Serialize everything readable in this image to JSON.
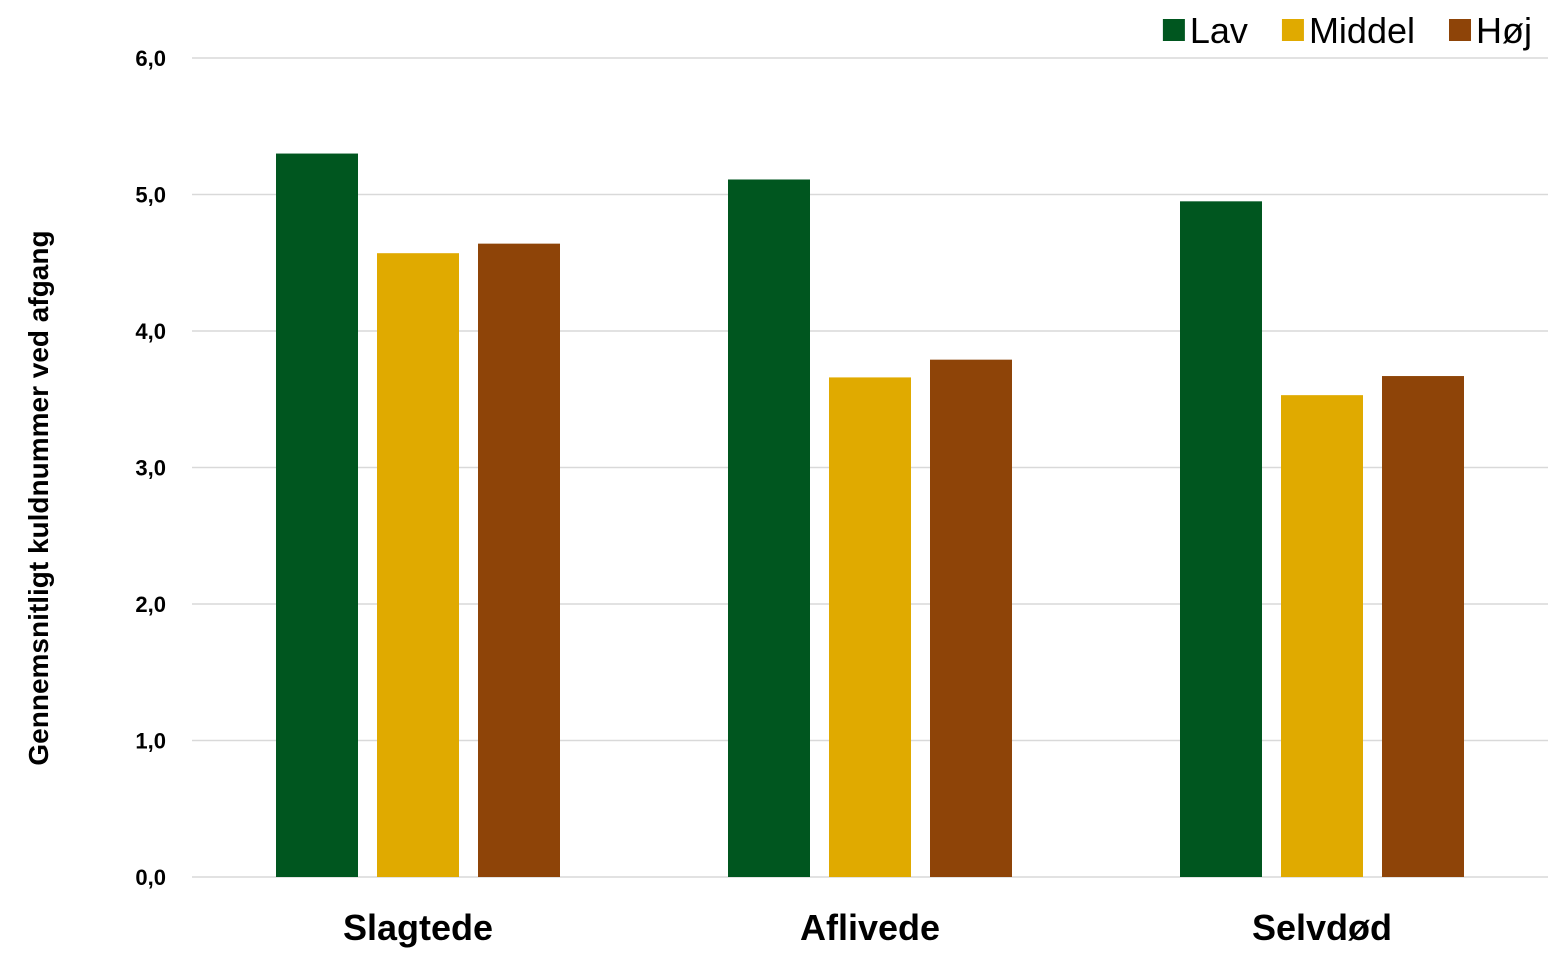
{
  "chart_data": {
    "type": "bar",
    "title": "",
    "xlabel": "",
    "ylabel": "Gennemsnitligt kuldnummer ved afgang",
    "categories": [
      "Slagtede",
      "Aflivede",
      "Selvdød"
    ],
    "series": [
      {
        "name": "Lav",
        "color": "#00561f",
        "values": [
          5.3,
          5.11,
          4.95
        ]
      },
      {
        "name": "Middel",
        "color": "#e0aa00",
        "values": [
          4.57,
          3.66,
          3.53
        ]
      },
      {
        "name": "Høj",
        "color": "#8e4408",
        "values": [
          4.64,
          3.79,
          3.67
        ]
      }
    ],
    "ylim": [
      0,
      6
    ],
    "yticks": [
      0,
      1,
      2,
      3,
      4,
      5,
      6
    ],
    "ytick_labels": [
      "0,0",
      "1,0",
      "2,0",
      "3,0",
      "4,0",
      "5,0",
      "6,0"
    ],
    "grid": true,
    "legend_position": "top-right"
  }
}
